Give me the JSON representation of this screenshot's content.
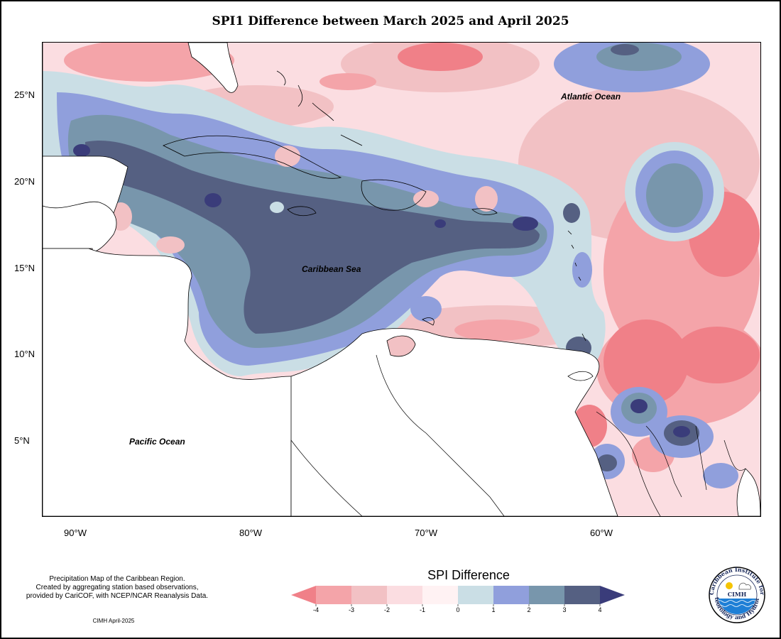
{
  "title": "SPI1 Difference between March 2025 and April 2025",
  "map": {
    "lat_labels": [
      "25°N",
      "20°N",
      "15°N",
      "10°N",
      "5°N"
    ],
    "lon_labels": [
      "90°W",
      "80°W",
      "70°W",
      "60°W"
    ],
    "ocean_labels": {
      "atlantic": "Atlantic Ocean",
      "caribbean": "Caribbean Sea",
      "pacific": "Pacific Ocean"
    }
  },
  "legend": {
    "title": "SPI Difference",
    "ticks": [
      "-4",
      "-3",
      "-2",
      "-1",
      "0",
      "1",
      "2",
      "3",
      "4"
    ],
    "colors": [
      "#f08088",
      "#f4a4a9",
      "#f2c1c4",
      "#fbdde1",
      "#fff2f3",
      "#cadee5",
      "#909fdc",
      "#7896ac",
      "#556082",
      "#3a3c7a"
    ]
  },
  "credit": {
    "line1": "Precipitation Map of the Caribbean Region.",
    "line2": "Created by aggregating station based observations,",
    "line3": "provided by CariCOF, with NCEP/NCAR Reanalysis Data.",
    "date": "CIMH April-2025"
  },
  "logo": {
    "acronym": "CIMH",
    "ring_top": "Caribbean Institute for",
    "ring_bottom": "Meteorology and Hydrology"
  }
}
